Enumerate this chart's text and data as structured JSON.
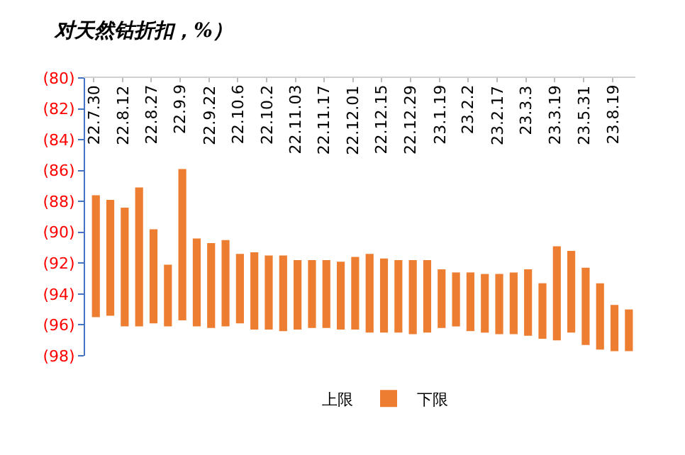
{
  "chart_data": {
    "type": "bar",
    "title": "对天然钴折扣，%）",
    "categories": [
      "22.7.30",
      null,
      "22.8.12",
      null,
      "22.8.27",
      null,
      "22.9.9",
      null,
      "22.9.22",
      null,
      "22.10.6",
      null,
      "22.10.2",
      null,
      "22.11.03",
      null,
      "22.11.17",
      null,
      "22.12.01",
      null,
      "22.12.15",
      null,
      "22.12.29",
      null,
      "23.1.19",
      null,
      "23.2.2",
      null,
      "23.2.17",
      null,
      "23.3.3",
      null,
      "23.3.19",
      null,
      "23.5.31",
      null,
      "23.8.19",
      null
    ],
    "series": [
      {
        "name": "上限",
        "values": [
          null,
          null,
          null,
          null,
          null,
          null,
          null,
          null,
          null,
          null,
          null,
          null,
          null,
          null,
          null,
          null,
          null,
          null,
          null,
          null,
          null,
          null,
          null,
          null,
          null,
          null,
          null,
          null,
          null,
          null,
          null,
          null,
          null,
          null,
          null,
          null,
          null,
          null
        ]
      },
      {
        "name": "下限",
        "color": "#ed7d31",
        "base": [
          -95.5,
          -95.4,
          -96.1,
          -96.1,
          -95.9,
          -96.1,
          -95.7,
          -96.1,
          -96.2,
          -96.1,
          -95.9,
          -96.3,
          -96.3,
          -96.4,
          -96.3,
          -96.2,
          -96.2,
          -96.3,
          -96.3,
          -96.5,
          -96.5,
          -96.5,
          -96.6,
          -96.5,
          -96.2,
          -96.1,
          -96.4,
          -96.5,
          -96.6,
          -96.6,
          -96.7,
          -96.9,
          -97.0,
          -96.5,
          -97.3,
          -97.6,
          -97.7,
          -97.7
        ],
        "values": [
          7.9,
          7.5,
          7.7,
          9.0,
          6.1,
          4.0,
          9.8,
          5.7,
          5.5,
          5.6,
          4.5,
          5.0,
          4.8,
          4.9,
          4.5,
          4.4,
          4.4,
          4.4,
          4.7,
          5.1,
          4.8,
          4.7,
          4.8,
          4.7,
          3.8,
          3.5,
          3.8,
          3.8,
          3.9,
          4.0,
          4.3,
          3.6,
          6.1,
          5.3,
          5.0,
          4.3,
          3.0,
          2.7
        ]
      }
    ],
    "ylim": [
      -98,
      -80
    ],
    "yticks": [
      {
        "value": -80,
        "label": "(80)"
      },
      {
        "value": -82,
        "label": "(82)"
      },
      {
        "value": -84,
        "label": "(84)"
      },
      {
        "value": -86,
        "label": "(86)"
      },
      {
        "value": -88,
        "label": "(88)"
      },
      {
        "value": -90,
        "label": "(90)"
      },
      {
        "value": -92,
        "label": "(92)"
      },
      {
        "value": -94,
        "label": "(94)"
      },
      {
        "value": -96,
        "label": "(96)"
      },
      {
        "value": -98,
        "label": "(98)"
      }
    ],
    "legend": "bottom"
  }
}
